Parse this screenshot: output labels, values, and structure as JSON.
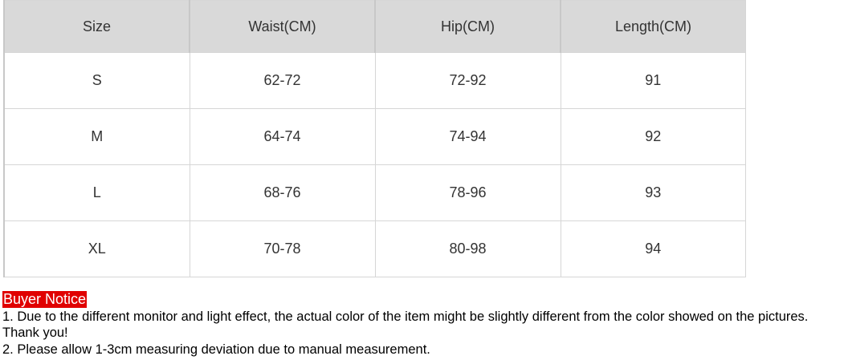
{
  "table": {
    "header": [
      "Size",
      "Waist(CM)",
      "Hip(CM)",
      "Length(CM)"
    ],
    "rows": [
      [
        "S",
        "62-72",
        "72-92",
        "91"
      ],
      [
        "M",
        "64-74",
        "74-94",
        "92"
      ],
      [
        "L",
        "68-76",
        "78-96",
        "93"
      ],
      [
        "XL",
        "70-78",
        "80-98",
        "94"
      ]
    ]
  },
  "notice": {
    "title": "Buyer Notice",
    "lines": [
      "1. Due to the different monitor and light effect, the actual color of the item might be slightly different from the color showed on the pictures. Thank you!",
      "2. Please allow 1-3cm measuring deviation due to manual measurement."
    ]
  }
}
